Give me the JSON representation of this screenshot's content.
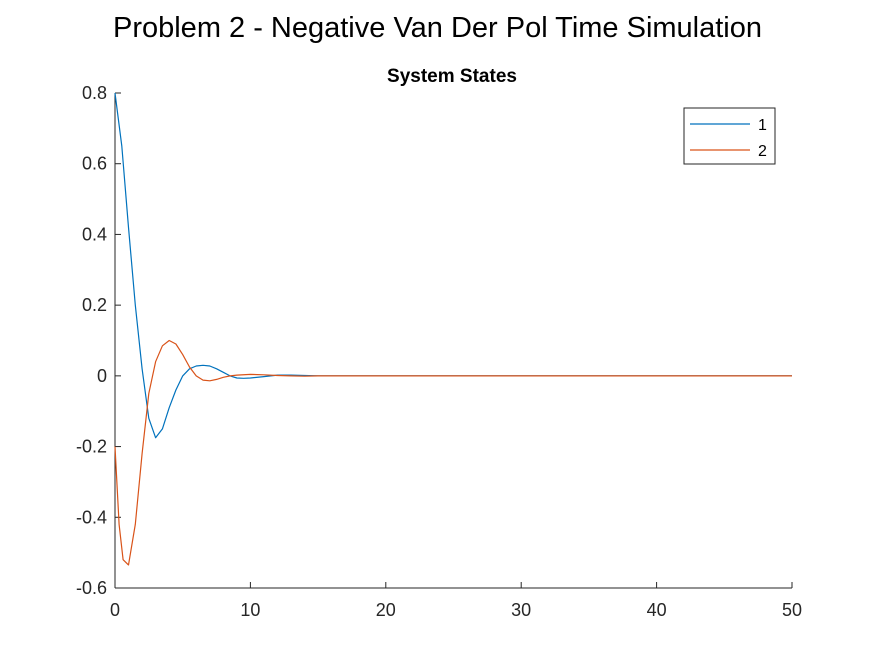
{
  "figure": {
    "title": "Problem 2 - Negative Van Der Pol Time Simulation"
  },
  "chart_data": {
    "type": "line",
    "title": "System States",
    "xlabel": "",
    "ylabel": "",
    "xlim": [
      0,
      50
    ],
    "ylim": [
      -0.6,
      0.8
    ],
    "xticks": [
      0,
      10,
      20,
      30,
      40,
      50
    ],
    "yticks": [
      -0.6,
      -0.4,
      -0.2,
      0,
      0.2,
      0.4,
      0.6,
      0.8
    ],
    "grid": false,
    "legend_position": "top-right",
    "series": [
      {
        "name": "1",
        "color": "#0072BD",
        "x": [
          0,
          0.5,
          1,
          1.5,
          2,
          2.5,
          3,
          3.5,
          4,
          4.5,
          5,
          5.5,
          6,
          6.5,
          7,
          7.5,
          8,
          8.5,
          9,
          9.5,
          10,
          11,
          12,
          13,
          14,
          15,
          17,
          20,
          25,
          30,
          40,
          50
        ],
        "values": [
          0.8,
          0.65,
          0.42,
          0.2,
          0.02,
          -0.12,
          -0.175,
          -0.15,
          -0.09,
          -0.04,
          0.0,
          0.02,
          0.028,
          0.03,
          0.028,
          0.02,
          0.01,
          0.0,
          -0.006,
          -0.007,
          -0.006,
          -0.002,
          0.002,
          0.002,
          0.001,
          0.0,
          0.0,
          0.0,
          0.0,
          0.0,
          0.0,
          0.0
        ]
      },
      {
        "name": "2",
        "color": "#D95319",
        "x": [
          0,
          0.3,
          0.6,
          1,
          1.5,
          2,
          2.5,
          3,
          3.5,
          4,
          4.5,
          5,
          5.5,
          6,
          6.5,
          7,
          7.5,
          8,
          8.5,
          9,
          10,
          11,
          12,
          13,
          14,
          15,
          17,
          20,
          25,
          30,
          40,
          50
        ],
        "values": [
          -0.2,
          -0.42,
          -0.52,
          -0.535,
          -0.42,
          -0.22,
          -0.05,
          0.04,
          0.085,
          0.1,
          0.09,
          0.06,
          0.025,
          0.0,
          -0.012,
          -0.014,
          -0.01,
          -0.004,
          0.0,
          0.002,
          0.004,
          0.003,
          0.001,
          0.0,
          -0.001,
          0.0,
          0.0,
          0.0,
          0.0,
          0.0,
          0.0,
          0.0
        ]
      }
    ]
  }
}
